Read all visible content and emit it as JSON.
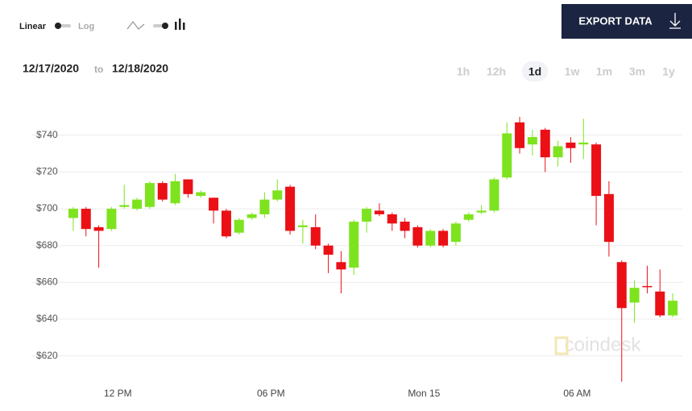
{
  "controls": {
    "scale_linear": "Linear",
    "scale_log": "Log",
    "export": "EXPORT DATA",
    "date_from": "12/17/2020",
    "date_sep": "to",
    "date_to": "12/18/2020",
    "ranges": [
      "1h",
      "12h",
      "1d",
      "1w",
      "1m",
      "3m",
      "1y"
    ],
    "active_range": "1d",
    "watermark": "coindesk"
  },
  "chart_data": {
    "type": "candlestick",
    "categories": [
      null,
      null,
      null,
      null,
      "12 PM",
      null,
      null,
      null,
      null,
      null,
      null,
      null,
      null,
      null,
      null,
      null,
      "06 PM",
      null,
      null,
      null,
      null,
      null,
      null,
      null,
      null,
      null,
      null,
      null,
      "Mon 15",
      null,
      null,
      null,
      null,
      null,
      null,
      null,
      null,
      null,
      null,
      null,
      "06 AM",
      null,
      null,
      null,
      null,
      null,
      null,
      null
    ],
    "open": [
      695,
      700,
      690,
      689,
      701,
      700,
      701,
      714,
      703,
      716,
      707,
      706,
      699,
      687,
      695,
      697,
      705,
      712,
      690,
      690,
      680,
      671,
      668,
      693,
      699,
      697,
      693,
      690,
      680,
      688,
      682,
      694,
      698,
      699,
      717,
      747,
      735,
      743,
      728,
      736,
      735,
      735,
      708,
      671,
      649,
      658,
      655,
      642
    ],
    "high": [
      701,
      701,
      691,
      701,
      713,
      706,
      715,
      715,
      719,
      716,
      710,
      706,
      700,
      695,
      698,
      709,
      716,
      713,
      694,
      697,
      681,
      677,
      694,
      701,
      703,
      698,
      695,
      691,
      689,
      689,
      693,
      698,
      702,
      717,
      747,
      750,
      743,
      744,
      737,
      739,
      749,
      736,
      715,
      672,
      661,
      669,
      667,
      654
    ],
    "low": [
      688,
      685,
      668,
      688,
      700,
      699,
      700,
      704,
      702,
      706,
      706,
      692,
      684,
      686,
      694,
      695,
      704,
      686,
      681,
      678,
      665,
      654,
      664,
      687,
      696,
      688,
      684,
      679,
      679,
      679,
      680,
      693,
      697,
      698,
      716,
      730,
      729,
      720,
      723,
      725,
      727,
      691,
      674,
      606,
      638,
      654,
      641,
      641
    ],
    "close": [
      700,
      689,
      688,
      700,
      702,
      705,
      714,
      705,
      715,
      708,
      709,
      699,
      685,
      694,
      697,
      705,
      710,
      688,
      691,
      680,
      675,
      667,
      693,
      700,
      697,
      692,
      688,
      680,
      688,
      680,
      692,
      697,
      699,
      716,
      741,
      733,
      739,
      728,
      734,
      733,
      736,
      707,
      682,
      646,
      657,
      658,
      642,
      650
    ],
    "up_color": "#7ee31f",
    "down_color": "#eb0f16",
    "ylim": [
      608,
      757
    ],
    "yticks": [
      {
        "value": 620,
        "label": "$620"
      },
      {
        "value": 640,
        "label": "$640"
      },
      {
        "value": 660,
        "label": "$660"
      },
      {
        "value": 680,
        "label": "$680"
      },
      {
        "value": 700,
        "label": "$700"
      },
      {
        "value": 720,
        "label": "$720"
      },
      {
        "value": 740,
        "label": "$740"
      }
    ],
    "grid": true
  }
}
